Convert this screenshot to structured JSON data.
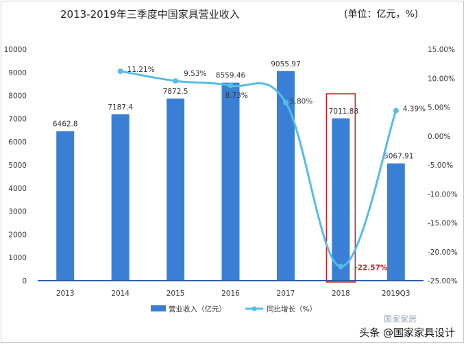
{
  "chart_data": {
    "type": "bar",
    "title": "2013-2019年三季度中国家具营业收入",
    "unit_note": "(单位：亿元，%)",
    "categories": [
      "2013",
      "2014",
      "2015",
      "2016",
      "2017",
      "2018",
      "2019Q3"
    ],
    "series": [
      {
        "name": "营业收入（亿元）",
        "type": "bar",
        "axis": "left",
        "values": [
          6462.8,
          7187.4,
          7872.5,
          8559.46,
          9055.97,
          7011.88,
          5067.91
        ],
        "labels": [
          "6462.8",
          "7187.4",
          "7872.5",
          "8559.46",
          "9055.97",
          "7011.88",
          "5067.91"
        ]
      },
      {
        "name": "同比增长（%）",
        "type": "line",
        "axis": "right",
        "values": [
          null,
          11.21,
          9.53,
          8.73,
          5.8,
          -22.57,
          4.39
        ],
        "labels": [
          "",
          "11.21%",
          "9.53%",
          "8.73%",
          "5.80%",
          "-22.57%",
          "4.39%"
        ]
      }
    ],
    "y_left": {
      "min": 0,
      "max": 10000,
      "ticks": [
        "0",
        "1000",
        "2000",
        "3000",
        "4000",
        "5000",
        "6000",
        "7000",
        "8000",
        "9000",
        "10000"
      ]
    },
    "y_right": {
      "min": -25,
      "max": 15,
      "ticks": [
        "-25.00%",
        "-20.00%",
        "-15.00%",
        "-10.00%",
        "-5.00%",
        "0.00%",
        "5.00%",
        "10.00%",
        "15.00%"
      ]
    },
    "highlight_category": "2018",
    "grid": false,
    "legend_position": "bottom",
    "colors": {
      "bar": "#3a7fd6",
      "line": "#55bce6",
      "highlight_box": "#d0222a",
      "negative_label": "#d0222a"
    }
  },
  "watermark": {
    "text": "头条 @国家家具设计",
    "faint_text": "国家家居"
  }
}
